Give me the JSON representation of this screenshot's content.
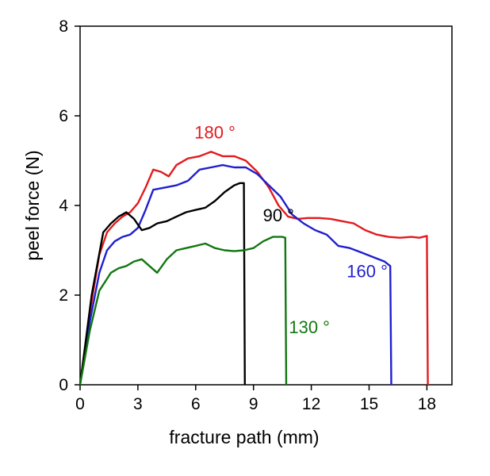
{
  "chart_data": {
    "type": "line",
    "title": "",
    "xlabel": "fracture path  (mm)",
    "ylabel": "peel force (N)",
    "xlim": [
      0,
      19.3
    ],
    "ylim": [
      0,
      8
    ],
    "x_ticks": [
      "0",
      "3",
      "6",
      "9",
      "12",
      "15",
      "18"
    ],
    "y_ticks": [
      "0",
      "2",
      "4",
      "6",
      "8"
    ],
    "grid": false,
    "legend": "inline labels",
    "series": [
      {
        "name": "180 °",
        "color": "#e31a1c",
        "x": [
          0,
          0.5,
          1.0,
          1.4,
          1.8,
          2.2,
          2.6,
          3.0,
          3.4,
          3.8,
          4.2,
          4.6,
          5.0,
          5.6,
          6.2,
          6.8,
          7.4,
          8.0,
          8.6,
          9.2,
          9.8,
          10.3,
          10.8,
          11.3,
          11.8,
          12.4,
          13.0,
          13.6,
          14.2,
          14.8,
          15.4,
          16.0,
          16.6,
          17.2,
          17.6,
          18.0,
          18.05
        ],
        "y": [
          0,
          1.6,
          2.9,
          3.4,
          3.6,
          3.75,
          3.85,
          4.05,
          4.4,
          4.8,
          4.75,
          4.65,
          4.9,
          5.05,
          5.1,
          5.2,
          5.1,
          5.1,
          5.0,
          4.75,
          4.4,
          4.0,
          3.75,
          3.7,
          3.72,
          3.72,
          3.7,
          3.65,
          3.6,
          3.45,
          3.35,
          3.3,
          3.28,
          3.3,
          3.28,
          3.32,
          0
        ]
      },
      {
        "name": "160 °",
        "color": "#1f1fcf",
        "x": [
          0,
          0.5,
          1.0,
          1.4,
          1.8,
          2.2,
          2.6,
          3.0,
          3.4,
          3.8,
          4.4,
          5.0,
          5.6,
          6.2,
          6.8,
          7.4,
          8.0,
          8.6,
          9.2,
          9.8,
          10.4,
          11.0,
          11.6,
          12.2,
          12.8,
          13.4,
          14.0,
          14.6,
          15.2,
          15.8,
          16.1,
          16.15
        ],
        "y": [
          0,
          1.4,
          2.5,
          3.0,
          3.2,
          3.3,
          3.35,
          3.5,
          3.9,
          4.35,
          4.4,
          4.45,
          4.55,
          4.8,
          4.85,
          4.9,
          4.85,
          4.85,
          4.7,
          4.45,
          4.2,
          3.8,
          3.6,
          3.45,
          3.35,
          3.1,
          3.05,
          2.95,
          2.85,
          2.75,
          2.65,
          0
        ]
      },
      {
        "name": "90 °",
        "color": "#000000",
        "x": [
          0,
          0.6,
          1.2,
          1.6,
          2.0,
          2.4,
          2.8,
          3.2,
          3.6,
          4.0,
          4.5,
          5.0,
          5.5,
          6.0,
          6.5,
          7.0,
          7.5,
          8.0,
          8.3,
          8.5,
          8.55
        ],
        "y": [
          0,
          2.0,
          3.4,
          3.6,
          3.75,
          3.85,
          3.7,
          3.45,
          3.5,
          3.6,
          3.65,
          3.75,
          3.85,
          3.9,
          3.95,
          4.1,
          4.3,
          4.45,
          4.5,
          4.5,
          0
        ]
      },
      {
        "name": "130 °",
        "color": "#117711",
        "x": [
          0,
          0.5,
          1.0,
          1.3,
          1.6,
          2.0,
          2.4,
          2.8,
          3.2,
          3.6,
          4.0,
          4.5,
          5.0,
          5.5,
          6.0,
          6.5,
          7.0,
          7.5,
          8.0,
          8.5,
          9.0,
          9.5,
          10.0,
          10.5,
          10.65,
          10.7
        ],
        "y": [
          0,
          1.2,
          2.1,
          2.3,
          2.5,
          2.6,
          2.65,
          2.75,
          2.8,
          2.65,
          2.5,
          2.8,
          3.0,
          3.05,
          3.1,
          3.15,
          3.05,
          3.0,
          2.98,
          3.0,
          3.05,
          3.2,
          3.3,
          3.3,
          3.28,
          0
        ]
      }
    ],
    "annotations": [
      {
        "text": "180 °",
        "x": 7.0,
        "y": 5.5,
        "color": "#e31a1c"
      },
      {
        "text": "160 °",
        "x": 14.9,
        "y": 2.4,
        "color": "#1f1fcf"
      },
      {
        "text": "90 °",
        "x": 10.3,
        "y": 3.65,
        "color": "#000000"
      },
      {
        "text": "130 °",
        "x": 11.9,
        "y": 1.15,
        "color": "#117711"
      }
    ]
  }
}
